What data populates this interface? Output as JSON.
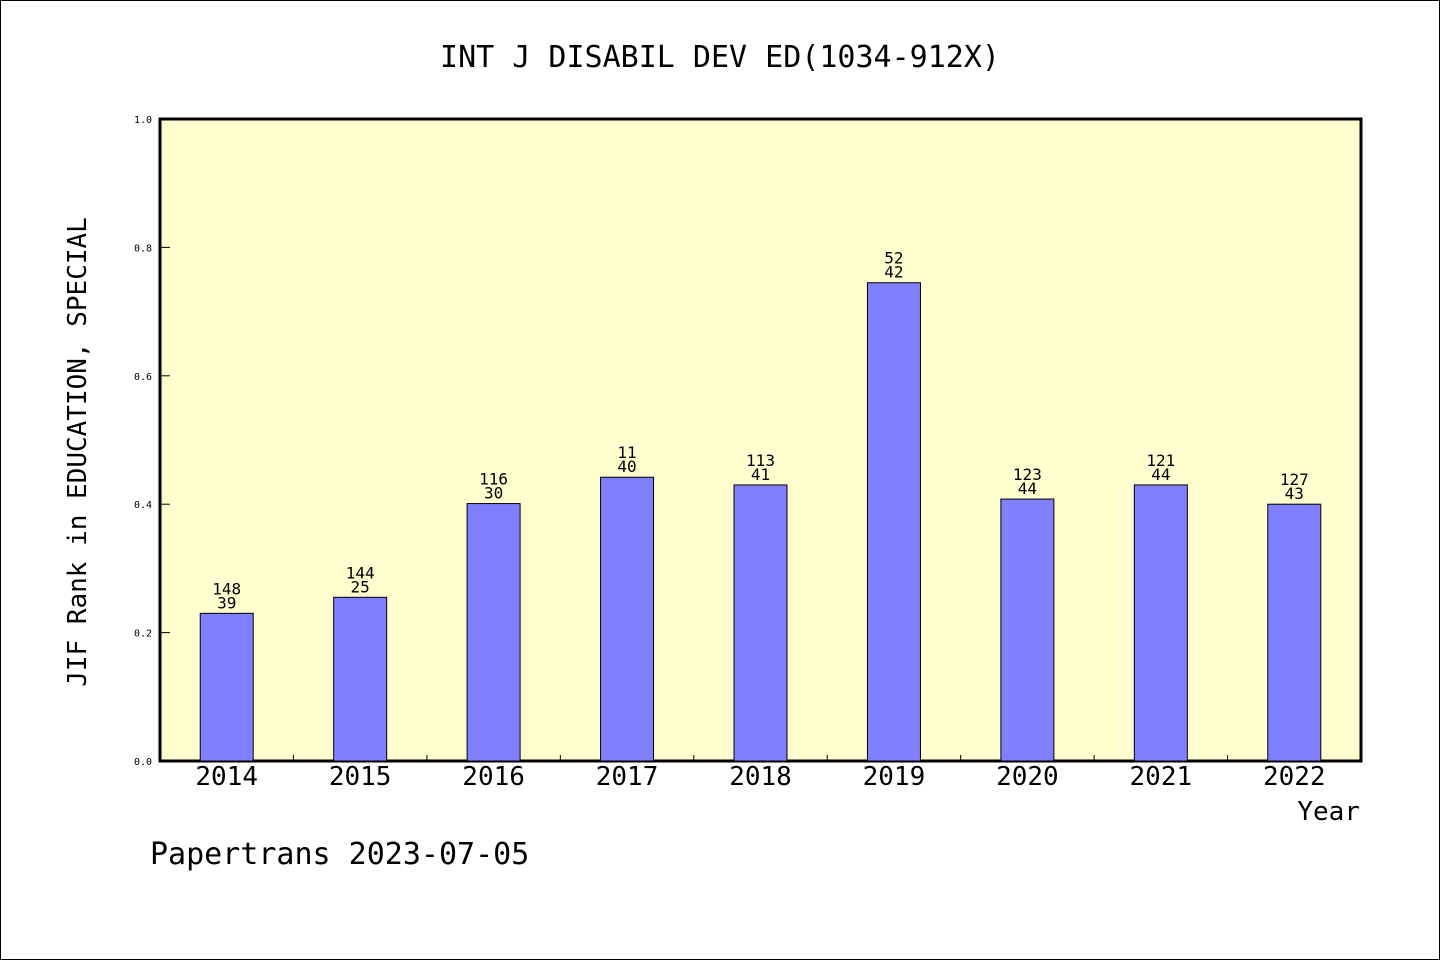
{
  "chart_data": {
    "type": "bar",
    "title": "INT J DISABIL DEV ED(1034-912X)",
    "xlabel": "Year",
    "ylabel": "JIF Rank in EDUCATION, SPECIAL",
    "footer": "Papertrans 2023-07-05",
    "ylim": [
      0,
      1.0
    ],
    "yticks": [
      "0.0",
      "0.2",
      "0.4",
      "0.6",
      "0.8",
      "1.0"
    ],
    "ytick_values": [
      0,
      0.2,
      0.4,
      0.6,
      0.8,
      1.0
    ],
    "categories": [
      "2014",
      "2015",
      "2016",
      "2017",
      "2018",
      "2019",
      "2020",
      "2021",
      "2022"
    ],
    "values": [
      0.23,
      0.255,
      0.401,
      0.442,
      0.43,
      0.745,
      0.408,
      0.43,
      0.4
    ],
    "label_top": [
      "148",
      "144",
      "116",
      "11",
      "113",
      "52",
      "123",
      "121",
      "127"
    ],
    "label_bottom": [
      "39",
      "25",
      "30",
      "40",
      "41",
      "42",
      "44",
      "44",
      "43"
    ],
    "grid": false,
    "colors": {
      "plot_background": "#ffffd0",
      "bar_fill": "#8080ff",
      "bar_stroke": "#000000"
    }
  }
}
